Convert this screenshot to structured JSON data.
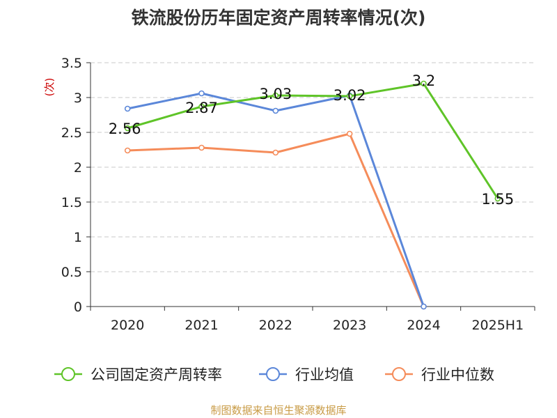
{
  "title": "铁流股份历年固定资产周转率情况(次)",
  "source": "制图数据来自恒生聚源数据库",
  "chart_data": {
    "type": "line",
    "title": "铁流股份历年固定资产周转率情况(次)",
    "ylabel": "(次)",
    "categories": [
      "2020",
      "2021",
      "2022",
      "2023",
      "2024",
      "2025H1"
    ],
    "ylim": [
      0,
      3.5
    ],
    "yticks": [
      "0",
      "0.5",
      "1",
      "1.5",
      "2",
      "2.5",
      "3",
      "3.5"
    ],
    "grid": "horizontal dashed",
    "legend_position": "bottom",
    "series": [
      {
        "name": "公司固定资产周转率",
        "color": "#5fc428",
        "values": [
          2.56,
          2.87,
          3.03,
          3.02,
          3.2,
          1.55
        ],
        "labels": [
          "2.56",
          "2.87",
          "3.03",
          "3.02",
          "3.2",
          "1.55"
        ]
      },
      {
        "name": "行业均值",
        "color": "#5b87d9",
        "values": [
          2.84,
          3.06,
          2.81,
          3.03,
          0,
          null
        ]
      },
      {
        "name": "行业中位数",
        "color": "#f58c5a",
        "values": [
          2.24,
          2.28,
          2.21,
          2.48,
          0,
          null
        ]
      }
    ]
  }
}
